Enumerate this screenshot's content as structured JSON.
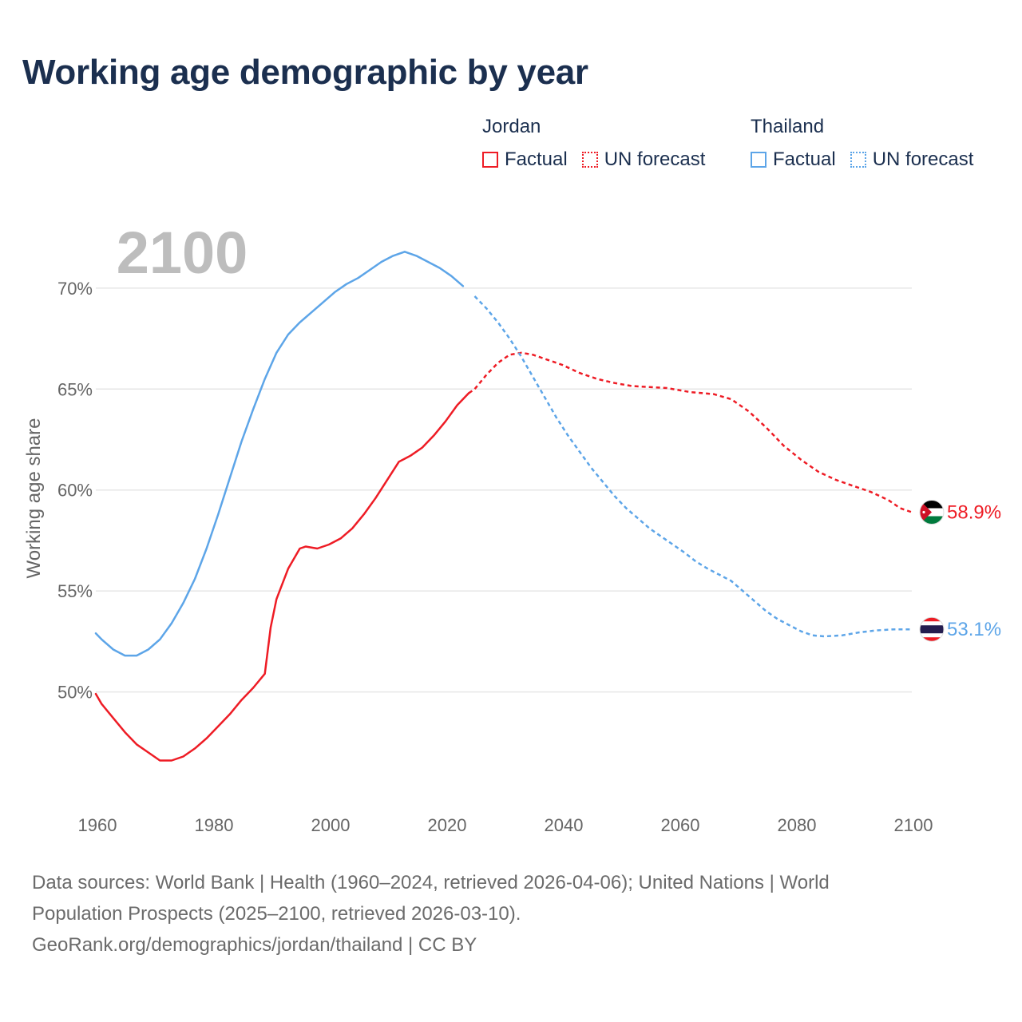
{
  "title": "Working age demographic by year",
  "legend": [
    {
      "country": "Jordan",
      "color": "#ee1c25",
      "factual_label": "Factual",
      "forecast_label": "UN forecast"
    },
    {
      "country": "Thailand",
      "color": "#5da5e8",
      "factual_label": "Factual",
      "forecast_label": "UN forecast"
    }
  ],
  "year_watermark": "2100",
  "chart_data": {
    "type": "line",
    "title": "Working age demographic by year",
    "xlabel": "",
    "ylabel": "Working age share",
    "xlim": [
      1960,
      2100
    ],
    "ylim": [
      45,
      73
    ],
    "x_ticks": [
      1960,
      1980,
      2000,
      2020,
      2040,
      2060,
      2080,
      2100
    ],
    "x_tick_labels": [
      "1960",
      "1980",
      "2000",
      "2020",
      "2040",
      "2060",
      "2080",
      "2100"
    ],
    "y_ticks": [
      50,
      55,
      60,
      65,
      70
    ],
    "y_tick_labels": [
      "50%",
      "55%",
      "60%",
      "65%",
      "70%"
    ],
    "grid": true,
    "factual_end_year": 2024,
    "series": [
      {
        "name": "Jordan",
        "color": "#ee1c25",
        "end_label": "58.9%",
        "points": [
          [
            1960,
            49.9
          ],
          [
            1961,
            49.4
          ],
          [
            1963,
            48.7
          ],
          [
            1965,
            48.0
          ],
          [
            1967,
            47.4
          ],
          [
            1969,
            47.0
          ],
          [
            1971,
            46.6
          ],
          [
            1973,
            46.6
          ],
          [
            1975,
            46.8
          ],
          [
            1977,
            47.2
          ],
          [
            1979,
            47.7
          ],
          [
            1981,
            48.3
          ],
          [
            1983,
            48.9
          ],
          [
            1985,
            49.6
          ],
          [
            1987,
            50.2
          ],
          [
            1989,
            50.9
          ],
          [
            1990,
            53.2
          ],
          [
            1991,
            54.6
          ],
          [
            1993,
            56.1
          ],
          [
            1995,
            57.1
          ],
          [
            1996,
            57.2
          ],
          [
            1998,
            57.1
          ],
          [
            2000,
            57.3
          ],
          [
            2002,
            57.6
          ],
          [
            2004,
            58.1
          ],
          [
            2006,
            58.8
          ],
          [
            2008,
            59.6
          ],
          [
            2010,
            60.5
          ],
          [
            2012,
            61.4
          ],
          [
            2014,
            61.7
          ],
          [
            2016,
            62.1
          ],
          [
            2018,
            62.7
          ],
          [
            2020,
            63.4
          ],
          [
            2022,
            64.2
          ],
          [
            2024,
            64.8
          ],
          [
            2025,
            65.0
          ],
          [
            2027,
            65.7
          ],
          [
            2029,
            66.3
          ],
          [
            2031,
            66.7
          ],
          [
            2033,
            66.8
          ],
          [
            2035,
            66.7
          ],
          [
            2037,
            66.5
          ],
          [
            2040,
            66.2
          ],
          [
            2043,
            65.8
          ],
          [
            2046,
            65.5
          ],
          [
            2049,
            65.3
          ],
          [
            2052,
            65.15
          ],
          [
            2055,
            65.1
          ],
          [
            2058,
            65.05
          ],
          [
            2062,
            64.85
          ],
          [
            2066,
            64.75
          ],
          [
            2069,
            64.5
          ],
          [
            2072,
            63.9
          ],
          [
            2075,
            63.1
          ],
          [
            2078,
            62.2
          ],
          [
            2081,
            61.5
          ],
          [
            2084,
            60.9
          ],
          [
            2087,
            60.5
          ],
          [
            2090,
            60.2
          ],
          [
            2093,
            59.9
          ],
          [
            2096,
            59.5
          ],
          [
            2098,
            59.1
          ],
          [
            2100,
            58.9
          ]
        ]
      },
      {
        "name": "Thailand",
        "color": "#5da5e8",
        "end_label": "53.1%",
        "points": [
          [
            1960,
            52.9
          ],
          [
            1961,
            52.6
          ],
          [
            1963,
            52.1
          ],
          [
            1965,
            51.8
          ],
          [
            1967,
            51.8
          ],
          [
            1969,
            52.1
          ],
          [
            1971,
            52.6
          ],
          [
            1973,
            53.4
          ],
          [
            1975,
            54.4
          ],
          [
            1977,
            55.6
          ],
          [
            1979,
            57.1
          ],
          [
            1981,
            58.8
          ],
          [
            1983,
            60.6
          ],
          [
            1985,
            62.4
          ],
          [
            1987,
            64.0
          ],
          [
            1989,
            65.5
          ],
          [
            1991,
            66.8
          ],
          [
            1993,
            67.7
          ],
          [
            1995,
            68.3
          ],
          [
            1997,
            68.8
          ],
          [
            1999,
            69.3
          ],
          [
            2001,
            69.8
          ],
          [
            2003,
            70.2
          ],
          [
            2005,
            70.5
          ],
          [
            2007,
            70.9
          ],
          [
            2009,
            71.3
          ],
          [
            2011,
            71.6
          ],
          [
            2013,
            71.8
          ],
          [
            2015,
            71.6
          ],
          [
            2017,
            71.3
          ],
          [
            2019,
            71.0
          ],
          [
            2021,
            70.6
          ],
          [
            2023,
            70.1
          ],
          [
            2025,
            69.6
          ],
          [
            2027,
            69.0
          ],
          [
            2029,
            68.3
          ],
          [
            2031,
            67.5
          ],
          [
            2033,
            66.6
          ],
          [
            2035,
            65.6
          ],
          [
            2037,
            64.6
          ],
          [
            2039,
            63.6
          ],
          [
            2041,
            62.7
          ],
          [
            2043,
            61.9
          ],
          [
            2045,
            61.1
          ],
          [
            2047,
            60.4
          ],
          [
            2049,
            59.7
          ],
          [
            2051,
            59.1
          ],
          [
            2053,
            58.6
          ],
          [
            2055,
            58.1
          ],
          [
            2057,
            57.7
          ],
          [
            2059,
            57.3
          ],
          [
            2061,
            56.9
          ],
          [
            2063,
            56.45
          ],
          [
            2065,
            56.1
          ],
          [
            2067,
            55.8
          ],
          [
            2069,
            55.5
          ],
          [
            2071,
            55.0
          ],
          [
            2073,
            54.5
          ],
          [
            2075,
            54.0
          ],
          [
            2077,
            53.6
          ],
          [
            2079,
            53.3
          ],
          [
            2081,
            53.0
          ],
          [
            2083,
            52.8
          ],
          [
            2085,
            52.75
          ],
          [
            2088,
            52.8
          ],
          [
            2091,
            52.95
          ],
          [
            2094,
            53.05
          ],
          [
            2097,
            53.1
          ],
          [
            2100,
            53.1
          ]
        ]
      }
    ]
  },
  "footer": {
    "sources_line1": "Data sources: World Bank | Health (1960–2024, retrieved 2026-04-06); United Nations | World",
    "sources_line2": "Population Prospects (2025–2100, retrieved 2026-03-10).",
    "credit": "GeoRank.org/demographics/jordan/thailand | CC BY"
  }
}
